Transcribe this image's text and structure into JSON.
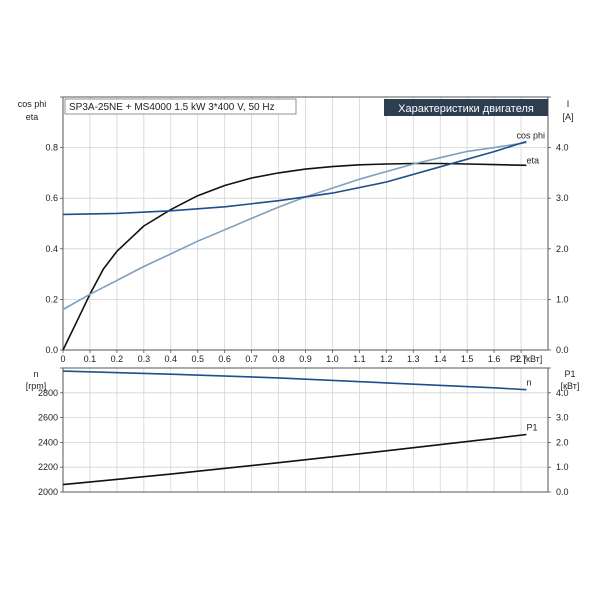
{
  "chart_data": [
    {
      "type": "line",
      "title": "SP3A-25NE + MS4000   1.5 kW   3*400 V, 50 Hz",
      "banner": "Характеристики двигателя",
      "xlabel": "P2 [кВт]",
      "xlim": [
        0,
        1.8
      ],
      "x_ticks": [
        "0",
        "0.1",
        "0.2",
        "0.3",
        "0.4",
        "0.5",
        "0.6",
        "0.7",
        "0.8",
        "0.9",
        "1.0",
        "1.1",
        "1.2",
        "1.3",
        "1.4",
        "1.5",
        "1.6",
        "1.7"
      ],
      "y_left": {
        "label_line1": "cos phi",
        "label_line2": "eta",
        "ylim": [
          0,
          1.0
        ],
        "ticks": [
          "0.0",
          "0.2",
          "0.4",
          "0.6",
          "0.8"
        ]
      },
      "y_right": {
        "label_line1": "I",
        "label_line2": "[A]",
        "ylim": [
          0,
          5.0
        ],
        "ticks": [
          "0.0",
          "1.0",
          "2.0",
          "3.0",
          "4.0"
        ]
      },
      "series": [
        {
          "name": "eta",
          "axis": "left",
          "color": "#111111",
          "x": [
            0,
            0.05,
            0.1,
            0.15,
            0.2,
            0.3,
            0.4,
            0.5,
            0.6,
            0.7,
            0.8,
            0.9,
            1.0,
            1.1,
            1.2,
            1.3,
            1.4,
            1.5,
            1.6,
            1.72
          ],
          "y": [
            0.0,
            0.11,
            0.22,
            0.32,
            0.39,
            0.49,
            0.555,
            0.61,
            0.65,
            0.68,
            0.7,
            0.715,
            0.725,
            0.732,
            0.735,
            0.737,
            0.737,
            0.735,
            0.733,
            0.73
          ]
        },
        {
          "name": "cos phi",
          "axis": "left",
          "color": "#7f9fbf",
          "x": [
            0,
            0.1,
            0.2,
            0.3,
            0.4,
            0.5,
            0.6,
            0.7,
            0.8,
            0.9,
            1.0,
            1.1,
            1.2,
            1.3,
            1.4,
            1.5,
            1.6,
            1.72
          ],
          "y": [
            0.16,
            0.22,
            0.275,
            0.33,
            0.38,
            0.43,
            0.475,
            0.52,
            0.565,
            0.605,
            0.64,
            0.675,
            0.705,
            0.735,
            0.76,
            0.785,
            0.8,
            0.82
          ]
        },
        {
          "name": "I",
          "axis": "right",
          "color": "#1f4e8c",
          "x": [
            0,
            0.2,
            0.4,
            0.6,
            0.8,
            1.0,
            1.2,
            1.4,
            1.6,
            1.72
          ],
          "y": [
            2.68,
            2.7,
            2.75,
            2.83,
            2.95,
            3.1,
            3.32,
            3.62,
            3.92,
            4.12
          ]
        }
      ]
    },
    {
      "type": "line",
      "xlim": [
        0,
        1.8
      ],
      "y_left": {
        "label_line1": "n",
        "label_line2": "[rpm]",
        "ylim": [
          2000,
          3000
        ],
        "ticks": [
          "2000",
          "2200",
          "2400",
          "2600",
          "2800"
        ]
      },
      "y_right": {
        "label_line1": "P1",
        "label_line2": "[кВт]",
        "ylim": [
          0,
          5.0
        ],
        "ticks": [
          "0.0",
          "1.0",
          "2.0",
          "3.0",
          "4.0"
        ]
      },
      "series": [
        {
          "name": "n",
          "axis": "left",
          "color": "#1f4e8c",
          "x": [
            0,
            0.4,
            0.8,
            1.2,
            1.6,
            1.72
          ],
          "y": [
            2975,
            2950,
            2920,
            2880,
            2840,
            2825
          ]
        },
        {
          "name": "P1",
          "axis": "right",
          "color": "#111111",
          "x": [
            0,
            0.4,
            0.8,
            1.2,
            1.6,
            1.72
          ],
          "y": [
            0.3,
            0.72,
            1.18,
            1.66,
            2.16,
            2.32
          ]
        }
      ]
    }
  ]
}
